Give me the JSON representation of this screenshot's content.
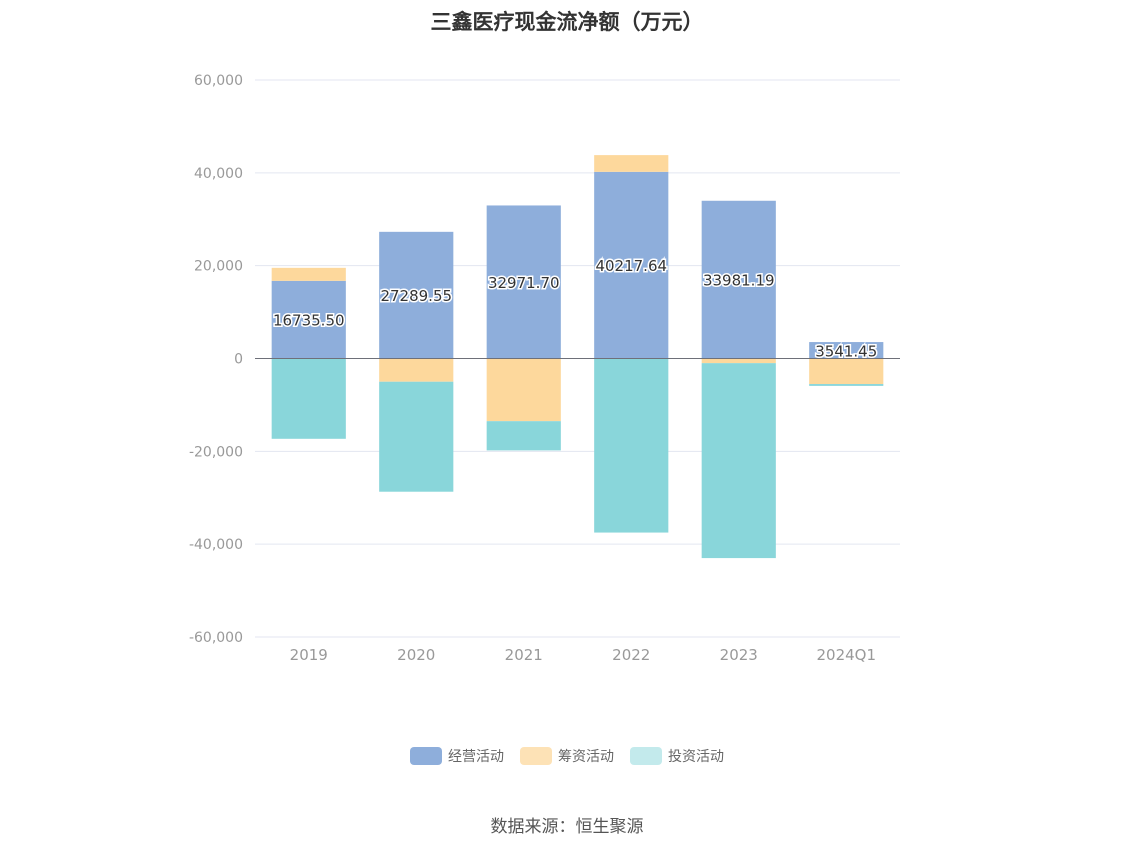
{
  "chart_data": {
    "type": "bar",
    "stacked": true,
    "title": "三鑫医疗现金流净额（万元）",
    "categories": [
      "2019",
      "2020",
      "2021",
      "2022",
      "2023",
      "2024Q1"
    ],
    "series": [
      {
        "name": "经营活动",
        "color": "#8eaedb",
        "values": [
          16735.5,
          27289.55,
          32971.7,
          40217.64,
          33981.19,
          3541.45
        ],
        "labels": [
          "16735.50",
          "27289.55",
          "32971.70",
          "40217.64",
          "33981.19",
          "3541.45"
        ]
      },
      {
        "name": "筹资活动",
        "color": "#fdd89c",
        "values": [
          2800,
          -5000,
          -13500,
          3600,
          -1000,
          -5500
        ]
      },
      {
        "name": "投资活动",
        "color": "#89d6da",
        "values": [
          -17300,
          -23700,
          -6300,
          -37500,
          -42000,
          -400
        ]
      }
    ],
    "yticks": [
      "60,000",
      "40,000",
      "20,000",
      "0",
      "-20,000",
      "-40,000",
      "-60,000"
    ],
    "ylim": [
      -60000,
      60000
    ],
    "legend_position": "bottom",
    "grid": true
  },
  "legend": [
    {
      "label": "经营活动",
      "color": "#8eaedb"
    },
    {
      "label": "筹资活动",
      "color": "#fdd89c"
    },
    {
      "label": "投资活动",
      "color": "#c3eaec"
    }
  ],
  "source": "数据来源：恒生聚源"
}
